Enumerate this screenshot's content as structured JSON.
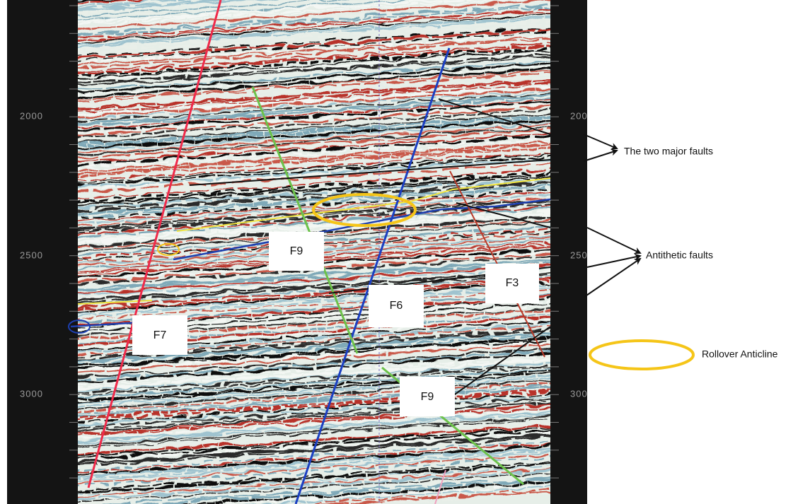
{
  "axis": {
    "ticks": [
      2000,
      2500,
      3000
    ]
  },
  "faults": [
    "F9",
    "F7",
    "F6",
    "F3",
    "F9"
  ],
  "annotations": {
    "major_faults": "The two major faults",
    "antithetic": "Antithetic faults",
    "rollover": "Rollover Anticline"
  }
}
